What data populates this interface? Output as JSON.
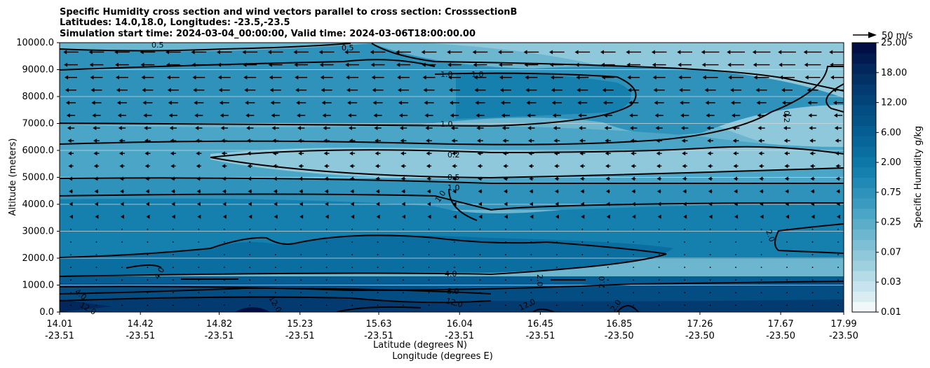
{
  "chart_data": {
    "type": "contourf",
    "title": [
      "Specific Humidity cross section and wind vectors parallel to cross section: CrosssectionB",
      "Latitudes: 14.0,18.0, Longitudes: -23.5,-23.5",
      "Simulation start time: 2024-03-04_00:00:00, Valid time: 2024-03-06T18:00:00.00"
    ],
    "ylabel": "Altitude (meters)",
    "xlabel_lat": "Latitude (degrees N)",
    "xlabel_lon": "Longitude (degrees E)",
    "ylim": [
      0,
      10000
    ],
    "yticks": [
      "0.0",
      "1000.0",
      "2000.0",
      "3000.0",
      "4000.0",
      "5000.0",
      "6000.0",
      "7000.0",
      "8000.0",
      "9000.0",
      "10000.0"
    ],
    "xticks_lat": [
      "14.01",
      "14.42",
      "14.82",
      "15.23",
      "15.63",
      "16.04",
      "16.45",
      "16.85",
      "17.26",
      "17.67",
      "17.99"
    ],
    "xticks_lon": [
      "-23.51",
      "-23.51",
      "-23.51",
      "-23.51",
      "-23.51",
      "-23.51",
      "-23.51",
      "-23.50",
      "-23.50",
      "-23.50",
      "-23.50"
    ],
    "colorbar_label": "Specific Humidity g/kg",
    "colorbar_ticks": [
      "0.01",
      "0.03",
      "0.07",
      "0.25",
      "0.75",
      "2.00",
      "6.00",
      "12.00",
      "18.00",
      "25.00"
    ],
    "quiver_key": "50 m/s",
    "contour_labels": [
      "0.5",
      "0.5",
      "1.0",
      "1.0",
      "0.2",
      "1.0",
      "0.2",
      "0.5",
      "1.0",
      "1.0",
      "2.0",
      "4.0",
      "4.0",
      "8.0",
      "12.0",
      "2.0",
      "2.0",
      "2.0",
      "12.0",
      "12.0",
      "12.0",
      "4.0",
      "12.0"
    ],
    "humidity_bands": [
      {
        "from": 0,
        "to": 500,
        "value": 12.0
      },
      {
        "from": 500,
        "to": 1200,
        "value": 8.0
      },
      {
        "from": 1200,
        "to": 2000,
        "value": 4.0
      },
      {
        "from": 2000,
        "to": 2700,
        "value": 3.0
      },
      {
        "from": 2700,
        "to": 4000,
        "value": 2.0
      },
      {
        "from": 4000,
        "to": 4900,
        "value": 1.0
      },
      {
        "from": 4900,
        "to": 5500,
        "value": 0.5
      },
      {
        "from": 5500,
        "to": 6200,
        "value": 0.2
      },
      {
        "from": 6200,
        "to": 7000,
        "value": 0.5
      },
      {
        "from": 7000,
        "to": 9000,
        "value": 1.0
      },
      {
        "from": 9000,
        "to": 10000,
        "value": 0.5
      }
    ],
    "colors": {
      "level_0_01": "#f0f8fa",
      "level_0_03": "#d9edf3",
      "level_0_07": "#b5dbe6",
      "level_0_25": "#8fc8da",
      "level_0_5": "#6cb6cf",
      "level_0_75": "#4aa5c6",
      "level_1_0": "#2e92bb",
      "level_2_0": "#1580ae",
      "level_4_0": "#0a6ea1",
      "level_6_0": "#055d93",
      "level_8_0": "#044d82",
      "level_12_0": "#033b70",
      "level_18_0": "#02275c",
      "level_25_0": "#010f45"
    }
  }
}
